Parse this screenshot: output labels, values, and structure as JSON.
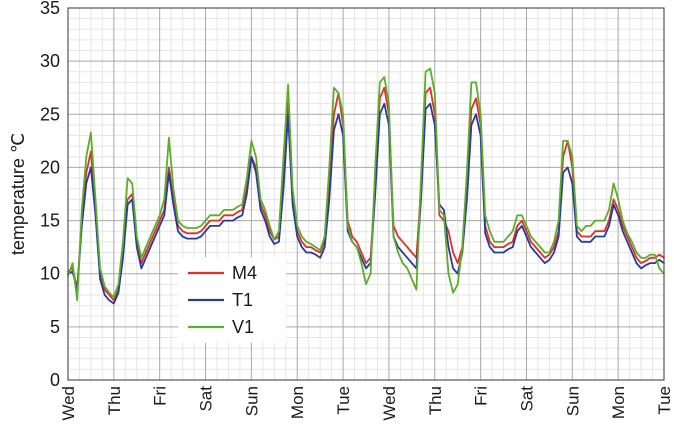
{
  "chart_data": {
    "type": "line",
    "title": "",
    "xlabel": "",
    "ylabel": "temperature ℃",
    "ylim": [
      0,
      35
    ],
    "yticks": [
      0,
      5,
      10,
      15,
      20,
      25,
      30,
      35
    ],
    "xlim": [
      0,
      13
    ],
    "x_tick_labels": [
      "Wed",
      "Thu",
      "Fri",
      "Sat",
      "Sun",
      "Mon",
      "Tue",
      "Wed",
      "Thu",
      "Fri",
      "Sat",
      "Sun",
      "Mon",
      "Tue"
    ],
    "grid": true,
    "legend_position": "lower-left",
    "x": [
      0.0,
      0.1,
      0.2,
      0.3,
      0.4,
      0.5,
      0.6,
      0.7,
      0.8,
      0.9,
      1.0,
      1.1,
      1.2,
      1.3,
      1.4,
      1.5,
      1.6,
      1.7,
      1.8,
      1.9,
      2.0,
      2.1,
      2.2,
      2.3,
      2.4,
      2.5,
      2.6,
      2.7,
      2.8,
      2.9,
      3.0,
      3.1,
      3.2,
      3.3,
      3.4,
      3.5,
      3.6,
      3.7,
      3.8,
      3.9,
      4.0,
      4.1,
      4.2,
      4.3,
      4.4,
      4.5,
      4.6,
      4.7,
      4.8,
      4.9,
      5.0,
      5.1,
      5.2,
      5.3,
      5.4,
      5.5,
      5.6,
      5.7,
      5.8,
      5.9,
      6.0,
      6.1,
      6.2,
      6.3,
      6.4,
      6.5,
      6.6,
      6.7,
      6.8,
      6.9,
      7.0,
      7.1,
      7.2,
      7.3,
      7.4,
      7.5,
      7.6,
      7.7,
      7.8,
      7.9,
      8.0,
      8.1,
      8.2,
      8.3,
      8.4,
      8.5,
      8.6,
      8.7,
      8.8,
      8.9,
      9.0,
      9.1,
      9.2,
      9.3,
      9.4,
      9.5,
      9.6,
      9.7,
      9.8,
      9.9,
      10.0,
      10.1,
      10.2,
      10.3,
      10.4,
      10.5,
      10.6,
      10.7,
      10.8,
      10.9,
      11.0,
      11.1,
      11.2,
      11.3,
      11.4,
      11.5,
      11.6,
      11.7,
      11.8,
      11.9,
      12.0,
      12.1,
      12.2,
      12.3,
      12.4,
      12.5,
      12.6,
      12.7,
      12.8,
      12.9,
      13.0
    ],
    "series": [
      {
        "name": "M4",
        "color": "#e0302a",
        "values": [
          10.2,
          10.5,
          8.6,
          15.0,
          19.5,
          21.5,
          16.0,
          10.0,
          8.5,
          8.0,
          7.5,
          8.5,
          12.0,
          17.0,
          17.5,
          13.0,
          11.0,
          12.0,
          13.0,
          14.0,
          15.0,
          16.0,
          20.0,
          17.0,
          14.5,
          14.0,
          13.8,
          13.8,
          13.8,
          14.0,
          14.5,
          15.0,
          15.0,
          15.0,
          15.5,
          15.5,
          15.5,
          15.8,
          16.0,
          18.0,
          21.0,
          20.0,
          16.5,
          15.5,
          14.0,
          13.2,
          13.5,
          19.0,
          26.5,
          17.0,
          14.0,
          13.0,
          12.5,
          12.5,
          12.2,
          12.0,
          13.0,
          18.0,
          25.0,
          27.0,
          24.0,
          15.0,
          13.5,
          13.0,
          12.0,
          11.0,
          11.5,
          18.5,
          26.5,
          27.5,
          25.0,
          14.5,
          13.5,
          13.0,
          12.5,
          12.0,
          11.5,
          18.0,
          27.0,
          27.5,
          25.0,
          15.5,
          15.0,
          14.0,
          12.0,
          11.0,
          12.5,
          18.0,
          25.5,
          26.5,
          24.0,
          14.5,
          13.0,
          12.5,
          12.5,
          12.5,
          12.8,
          13.0,
          14.5,
          15.0,
          14.0,
          13.0,
          12.5,
          12.0,
          11.5,
          11.8,
          12.5,
          14.0,
          21.0,
          22.5,
          20.0,
          14.0,
          13.5,
          13.5,
          13.5,
          14.0,
          14.0,
          14.0,
          15.0,
          17.0,
          16.0,
          14.5,
          13.5,
          12.5,
          11.5,
          11.0,
          11.2,
          11.5,
          11.5,
          11.8,
          11.5
        ]
      },
      {
        "name": "T1",
        "color": "#2b3a9a",
        "values": [
          10.0,
          10.2,
          8.5,
          14.5,
          18.5,
          20.0,
          15.5,
          9.5,
          8.0,
          7.5,
          7.2,
          8.2,
          11.5,
          16.5,
          17.0,
          12.5,
          10.5,
          11.5,
          12.5,
          13.5,
          14.5,
          15.5,
          19.5,
          16.5,
          14.0,
          13.5,
          13.3,
          13.3,
          13.3,
          13.5,
          14.0,
          14.5,
          14.5,
          14.5,
          15.0,
          15.0,
          15.0,
          15.3,
          15.5,
          17.5,
          21.0,
          19.5,
          16.0,
          15.0,
          13.5,
          12.8,
          13.0,
          18.0,
          25.0,
          16.5,
          13.5,
          12.5,
          12.0,
          12.0,
          11.8,
          11.5,
          12.5,
          17.0,
          23.5,
          25.0,
          23.0,
          14.0,
          13.0,
          12.5,
          11.5,
          10.5,
          11.0,
          17.5,
          25.0,
          26.0,
          24.0,
          13.5,
          12.5,
          12.0,
          11.5,
          11.0,
          10.5,
          17.0,
          25.5,
          26.0,
          24.0,
          16.5,
          16.0,
          12.5,
          10.5,
          10.0,
          12.0,
          17.0,
          24.0,
          25.0,
          23.0,
          13.8,
          12.5,
          12.0,
          12.0,
          12.0,
          12.3,
          12.5,
          14.0,
          14.5,
          13.5,
          12.5,
          12.0,
          11.5,
          11.0,
          11.3,
          12.0,
          13.5,
          19.5,
          20.0,
          18.5,
          13.5,
          13.0,
          13.0,
          13.0,
          13.5,
          13.5,
          13.5,
          14.5,
          16.5,
          15.5,
          14.0,
          13.0,
          12.0,
          11.0,
          10.5,
          10.8,
          11.0,
          11.0,
          11.3,
          11.0
        ]
      },
      {
        "name": "V1",
        "color": "#5cad2a",
        "values": [
          9.8,
          11.0,
          7.5,
          16.0,
          21.0,
          23.3,
          17.0,
          10.5,
          8.8,
          8.2,
          7.8,
          9.0,
          13.0,
          19.0,
          18.5,
          13.5,
          11.5,
          12.5,
          13.5,
          14.5,
          15.5,
          17.0,
          22.8,
          18.0,
          15.0,
          14.5,
          14.3,
          14.3,
          14.3,
          14.5,
          15.0,
          15.5,
          15.5,
          15.5,
          16.0,
          16.0,
          16.0,
          16.3,
          16.5,
          19.0,
          22.5,
          21.0,
          17.0,
          16.0,
          14.5,
          13.2,
          14.0,
          21.0,
          27.8,
          18.0,
          14.5,
          13.5,
          13.0,
          12.8,
          12.5,
          12.2,
          13.5,
          20.0,
          27.5,
          27.0,
          25.0,
          14.5,
          13.0,
          12.5,
          11.0,
          9.0,
          10.0,
          20.0,
          28.0,
          28.5,
          26.0,
          13.5,
          12.0,
          11.0,
          10.5,
          9.5,
          8.5,
          19.0,
          29.0,
          29.3,
          27.0,
          16.0,
          15.5,
          10.0,
          8.2,
          9.0,
          12.5,
          19.5,
          28.0,
          28.0,
          25.0,
          15.5,
          14.0,
          13.0,
          13.0,
          13.0,
          13.5,
          14.0,
          15.5,
          15.5,
          14.5,
          13.5,
          13.0,
          12.5,
          12.0,
          12.0,
          13.0,
          15.0,
          22.5,
          22.5,
          21.0,
          14.5,
          14.0,
          14.5,
          14.5,
          15.0,
          15.0,
          15.0,
          16.0,
          18.5,
          17.0,
          15.0,
          13.8,
          13.0,
          12.0,
          11.5,
          11.5,
          11.8,
          11.8,
          10.5,
          10.0
        ]
      }
    ]
  }
}
